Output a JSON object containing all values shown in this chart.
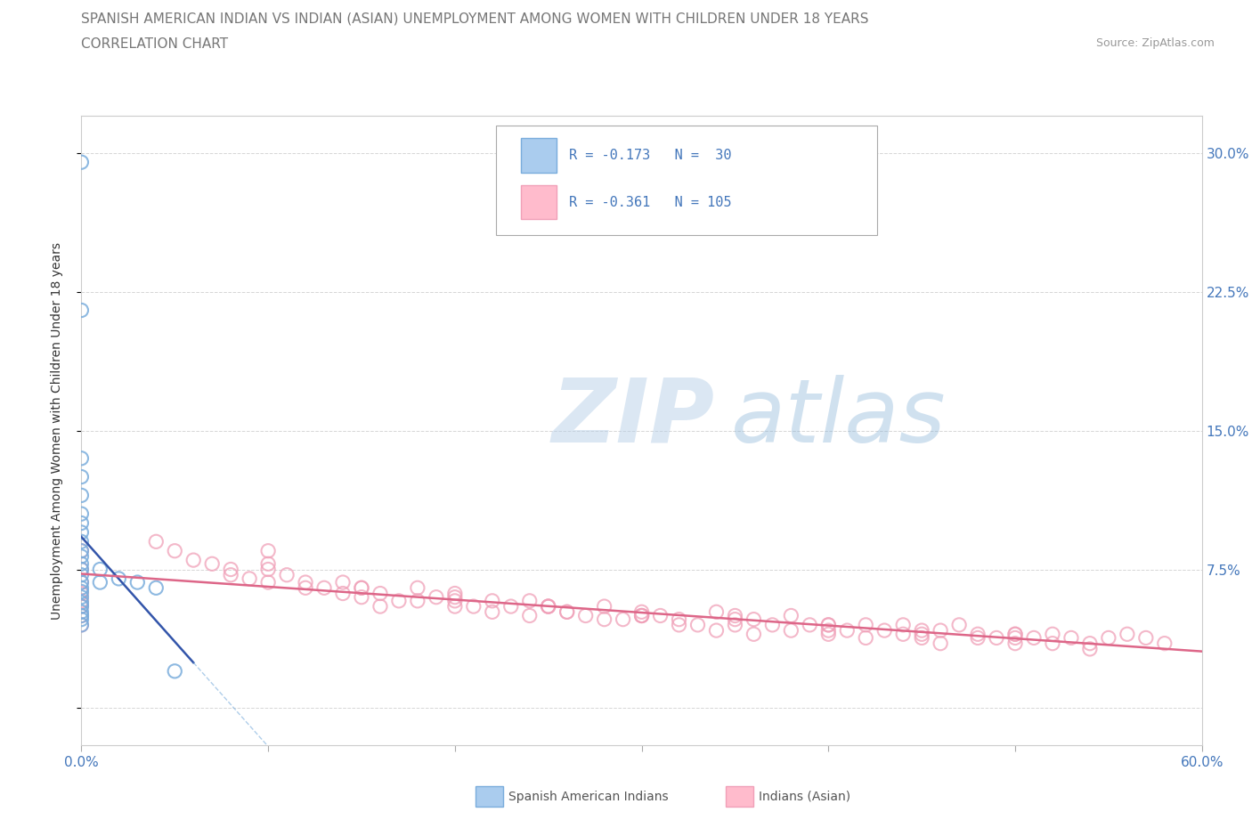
{
  "title": "SPANISH AMERICAN INDIAN VS INDIAN (ASIAN) UNEMPLOYMENT AMONG WOMEN WITH CHILDREN UNDER 18 YEARS",
  "subtitle": "CORRELATION CHART",
  "source": "Source: ZipAtlas.com",
  "watermark_zip": "ZIP",
  "watermark_atlas": "atlas",
  "xlabel": "",
  "ylabel": "Unemployment Among Women with Children Under 18 years",
  "xlim": [
    0.0,
    0.6
  ],
  "ylim": [
    -0.02,
    0.32
  ],
  "xticks": [
    0.0,
    0.1,
    0.2,
    0.3,
    0.4,
    0.5,
    0.6
  ],
  "yticks": [
    0.0,
    0.075,
    0.15,
    0.225,
    0.3
  ],
  "yticklabels": [
    "",
    "7.5%",
    "15.0%",
    "22.5%",
    "30.0%"
  ],
  "grid_color": "#cccccc",
  "blue_dot_color": "#7aaddc",
  "pink_dot_color": "#f0a0b8",
  "blue_line_color": "#3355aa",
  "pink_line_color": "#dd6688",
  "title_color": "#777777",
  "axis_color": "#4477bb",
  "legend_text_dark": "#333333",
  "r_blue": -0.173,
  "n_blue": 30,
  "r_pink": -0.361,
  "n_pink": 105,
  "blue_scatter_x": [
    0.0,
    0.0,
    0.0,
    0.0,
    0.0,
    0.0,
    0.0,
    0.0,
    0.0,
    0.0,
    0.0,
    0.0,
    0.0,
    0.0,
    0.0,
    0.0,
    0.0,
    0.0,
    0.0,
    0.0,
    0.0,
    0.0,
    0.0,
    0.0,
    0.01,
    0.01,
    0.02,
    0.03,
    0.04,
    0.05
  ],
  "blue_scatter_y": [
    0.295,
    0.215,
    0.135,
    0.125,
    0.115,
    0.105,
    0.1,
    0.095,
    0.09,
    0.085,
    0.082,
    0.078,
    0.075,
    0.072,
    0.068,
    0.065,
    0.063,
    0.06,
    0.057,
    0.055,
    0.052,
    0.05,
    0.048,
    0.045,
    0.075,
    0.068,
    0.07,
    0.068,
    0.065,
    0.02
  ],
  "pink_scatter_x": [
    0.0,
    0.0,
    0.0,
    0.0,
    0.0,
    0.0,
    0.0,
    0.0,
    0.04,
    0.05,
    0.06,
    0.07,
    0.08,
    0.09,
    0.1,
    0.1,
    0.11,
    0.12,
    0.13,
    0.14,
    0.15,
    0.16,
    0.17,
    0.18,
    0.19,
    0.2,
    0.21,
    0.22,
    0.23,
    0.24,
    0.25,
    0.26,
    0.27,
    0.28,
    0.29,
    0.3,
    0.31,
    0.32,
    0.33,
    0.34,
    0.35,
    0.36,
    0.37,
    0.38,
    0.39,
    0.4,
    0.41,
    0.42,
    0.43,
    0.44,
    0.45,
    0.46,
    0.47,
    0.48,
    0.49,
    0.5,
    0.51,
    0.52,
    0.53,
    0.54,
    0.55,
    0.56,
    0.57,
    0.58,
    0.08,
    0.1,
    0.12,
    0.14,
    0.16,
    0.18,
    0.2,
    0.22,
    0.24,
    0.26,
    0.28,
    0.3,
    0.32,
    0.34,
    0.36,
    0.38,
    0.4,
    0.42,
    0.44,
    0.46,
    0.48,
    0.5,
    0.52,
    0.54,
    0.15,
    0.2,
    0.25,
    0.3,
    0.35,
    0.4,
    0.45,
    0.5,
    0.1,
    0.15,
    0.2,
    0.25,
    0.3,
    0.35,
    0.4,
    0.45,
    0.5
  ],
  "pink_scatter_y": [
    0.085,
    0.075,
    0.068,
    0.062,
    0.058,
    0.055,
    0.05,
    0.045,
    0.09,
    0.085,
    0.08,
    0.078,
    0.075,
    0.07,
    0.085,
    0.078,
    0.072,
    0.068,
    0.065,
    0.068,
    0.065,
    0.062,
    0.058,
    0.065,
    0.06,
    0.062,
    0.055,
    0.058,
    0.055,
    0.058,
    0.055,
    0.052,
    0.05,
    0.055,
    0.048,
    0.052,
    0.05,
    0.048,
    0.045,
    0.052,
    0.05,
    0.048,
    0.045,
    0.05,
    0.045,
    0.045,
    0.042,
    0.045,
    0.042,
    0.045,
    0.04,
    0.042,
    0.045,
    0.04,
    0.038,
    0.04,
    0.038,
    0.04,
    0.038,
    0.035,
    0.038,
    0.04,
    0.038,
    0.035,
    0.072,
    0.068,
    0.065,
    0.062,
    0.055,
    0.058,
    0.055,
    0.052,
    0.05,
    0.052,
    0.048,
    0.05,
    0.045,
    0.042,
    0.04,
    0.042,
    0.04,
    0.038,
    0.04,
    0.035,
    0.038,
    0.04,
    0.035,
    0.032,
    0.06,
    0.058,
    0.055,
    0.05,
    0.048,
    0.045,
    0.042,
    0.038,
    0.075,
    0.065,
    0.06,
    0.055,
    0.05,
    0.045,
    0.042,
    0.038,
    0.035
  ],
  "background_color": "#ffffff",
  "plot_bg_color": "#ffffff"
}
